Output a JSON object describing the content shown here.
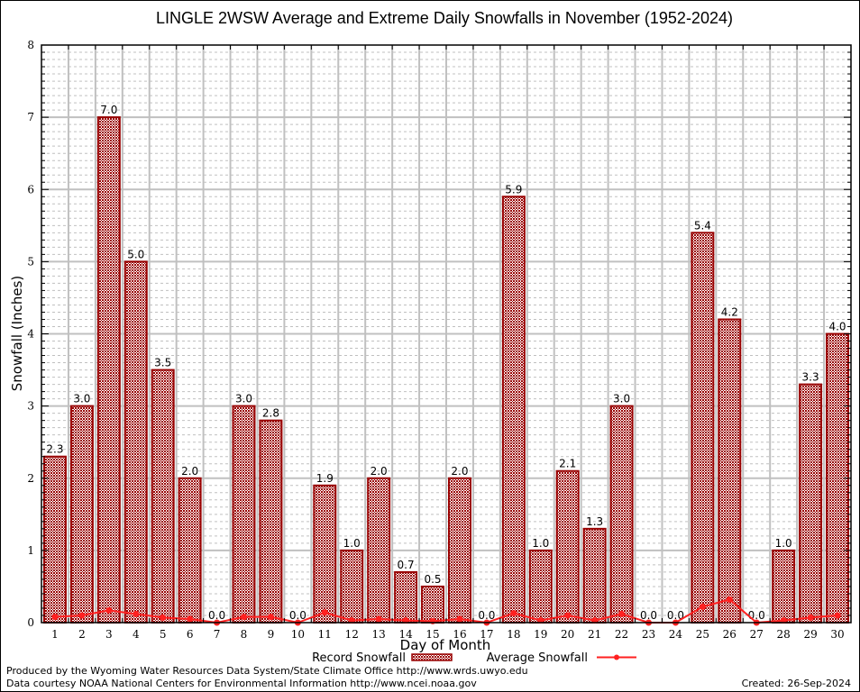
{
  "chart_data": {
    "type": "bar",
    "title": "LINGLE 2WSW Average and Extreme Daily Snowfalls in November (1952-2024)",
    "xlabel": "Day of Month",
    "ylabel": "Snowfall (Inches)",
    "ylim": [
      0,
      8
    ],
    "yticks": [
      "0",
      "1",
      "2",
      "3",
      "4",
      "5",
      "6",
      "7",
      "8"
    ],
    "categories": [
      "1",
      "2",
      "3",
      "4",
      "5",
      "6",
      "7",
      "8",
      "9",
      "10",
      "11",
      "12",
      "13",
      "14",
      "15",
      "16",
      "17",
      "18",
      "19",
      "20",
      "21",
      "22",
      "23",
      "24",
      "25",
      "26",
      "27",
      "28",
      "29",
      "30"
    ],
    "grid": true,
    "legend_position": "bottom-center",
    "series": [
      {
        "name": "Record Snowfall",
        "type": "bar",
        "color": "#990000",
        "values": [
          2.3,
          3.0,
          7.0,
          5.0,
          3.5,
          2.0,
          0.0,
          3.0,
          2.8,
          0.0,
          1.9,
          1.0,
          2.0,
          0.7,
          0.5,
          2.0,
          0.0,
          5.9,
          1.0,
          2.1,
          1.3,
          3.0,
          0.0,
          0.0,
          5.4,
          4.2,
          0.0,
          1.0,
          3.3,
          4.0
        ],
        "labels": [
          "2.3",
          "3.0",
          "7.0",
          "5.0",
          "3.5",
          "2.0",
          "0.0",
          "3.0",
          "2.8",
          "0.0",
          "1.9",
          "1.0",
          "2.0",
          "0.7",
          "0.5",
          "2.0",
          "0.0",
          "5.9",
          "1.0",
          "2.1",
          "1.3",
          "3.0",
          "0.0",
          "0.0",
          "5.4",
          "4.2",
          "0.0",
          "1.0",
          "3.3",
          "4.0"
        ]
      },
      {
        "name": "Average Snowfall",
        "type": "line",
        "color": "#ff2020",
        "values": [
          0.08,
          0.1,
          0.17,
          0.12,
          0.07,
          0.05,
          0.0,
          0.08,
          0.08,
          0.0,
          0.14,
          0.03,
          0.05,
          0.03,
          0.02,
          0.05,
          0.0,
          0.13,
          0.03,
          0.1,
          0.03,
          0.12,
          0.0,
          0.0,
          0.22,
          0.32,
          0.0,
          0.03,
          0.07,
          0.1
        ]
      }
    ]
  },
  "footer": {
    "produced_by": "Produced by the Wyoming Water Resources Data System/State Climate Office http://www.wrds.uwyo.edu",
    "data_courtesy": "Data courtesy NOAA National Centers for Environmental Information http://www.ncei.noaa.gov",
    "created": "Created: 26-Sep-2024"
  }
}
